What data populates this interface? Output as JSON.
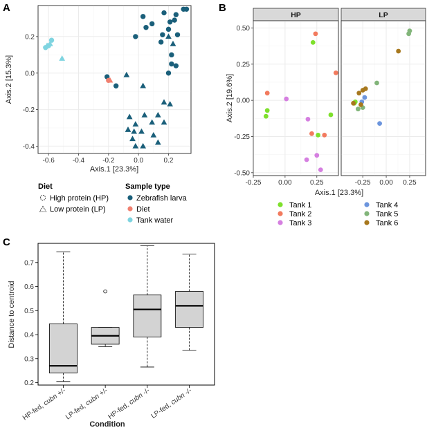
{
  "panels": {
    "a": "A",
    "b": "B",
    "c": "C"
  },
  "chart_data": [
    {
      "type": "scatter",
      "panel": "A",
      "xlabel": "Axis.1 [23.3%]",
      "ylabel": "Axis.2 [15.3%]",
      "xlim": [
        -0.67,
        0.35
      ],
      "ylim": [
        -0.44,
        0.37
      ],
      "xticks": [
        -0.6,
        -0.4,
        -0.2,
        0.0,
        0.2
      ],
      "xtick_labels": [
        "-0.6",
        "-0.4",
        "-0.2",
        "0.0",
        "0.2"
      ],
      "yticks": [
        -0.4,
        -0.2,
        0.0,
        0.2
      ],
      "ytick_labels": [
        "-0.4",
        "-0.2",
        "0.0",
        "0.2"
      ],
      "grid": true,
      "legend": {
        "diet_title": "Diet",
        "diet_items": [
          {
            "label": "High protein (HP)",
            "shape": "circle"
          },
          {
            "label": "Low protein (LP)",
            "shape": "triangle"
          }
        ],
        "sample_title": "Sample type",
        "sample_items": [
          {
            "label": "Zebrafish larva",
            "color": "#1a5f7a"
          },
          {
            "label": "Diet",
            "color": "#f08070"
          },
          {
            "label": "Tank water",
            "color": "#7fd4e0"
          }
        ],
        "placement": "bottom"
      },
      "series": [
        {
          "sample": "Zebrafish larva",
          "color": "#1a5f7a",
          "points": [
            {
              "x": 0.03,
              "y": 0.31,
              "shape": "circle"
            },
            {
              "x": 0.09,
              "y": 0.27,
              "shape": "circle"
            },
            {
              "x": 0.17,
              "y": 0.33,
              "shape": "circle"
            },
            {
              "x": 0.25,
              "y": 0.32,
              "shape": "circle"
            },
            {
              "x": 0.3,
              "y": 0.35,
              "shape": "circle"
            },
            {
              "x": 0.32,
              "y": 0.35,
              "shape": "circle"
            },
            {
              "x": 0.05,
              "y": 0.25,
              "shape": "circle"
            },
            {
              "x": 0.21,
              "y": 0.28,
              "shape": "circle"
            },
            {
              "x": 0.24,
              "y": 0.29,
              "shape": "circle"
            },
            {
              "x": 0.2,
              "y": 0.24,
              "shape": "circle"
            },
            {
              "x": 0.26,
              "y": 0.21,
              "shape": "circle"
            },
            {
              "x": -0.02,
              "y": 0.2,
              "shape": "circle"
            },
            {
              "x": 0.16,
              "y": 0.21,
              "shape": "circle"
            },
            {
              "x": 0.15,
              "y": 0.17,
              "shape": "circle"
            },
            {
              "x": 0.22,
              "y": 0.1,
              "shape": "circle"
            },
            {
              "x": 0.22,
              "y": 0.05,
              "shape": "circle"
            },
            {
              "x": 0.25,
              "y": 0.04,
              "shape": "circle"
            },
            {
              "x": 0.2,
              "y": 0.0,
              "shape": "circle"
            },
            {
              "x": -0.21,
              "y": -0.02,
              "shape": "circle"
            },
            {
              "x": -0.15,
              "y": -0.07,
              "shape": "circle"
            },
            {
              "x": 0.2,
              "y": 0.2,
              "shape": "triangle"
            },
            {
              "x": 0.23,
              "y": 0.16,
              "shape": "triangle"
            },
            {
              "x": -0.08,
              "y": -0.01,
              "shape": "triangle"
            },
            {
              "x": 0.03,
              "y": -0.07,
              "shape": "triangle"
            },
            {
              "x": 0.17,
              "y": -0.16,
              "shape": "triangle"
            },
            {
              "x": 0.21,
              "y": -0.17,
              "shape": "triangle"
            },
            {
              "x": -0.06,
              "y": -0.24,
              "shape": "triangle"
            },
            {
              "x": 0.04,
              "y": -0.23,
              "shape": "triangle"
            },
            {
              "x": 0.13,
              "y": -0.23,
              "shape": "triangle"
            },
            {
              "x": -0.02,
              "y": -0.28,
              "shape": "triangle"
            },
            {
              "x": -0.07,
              "y": -0.31,
              "shape": "triangle"
            },
            {
              "x": 0.09,
              "y": -0.27,
              "shape": "triangle"
            },
            {
              "x": 0.17,
              "y": -0.27,
              "shape": "triangle"
            },
            {
              "x": -0.03,
              "y": -0.32,
              "shape": "triangle"
            },
            {
              "x": 0.02,
              "y": -0.32,
              "shape": "triangle"
            },
            {
              "x": -0.04,
              "y": -0.36,
              "shape": "triangle"
            },
            {
              "x": 0.1,
              "y": -0.34,
              "shape": "triangle"
            },
            {
              "x": -0.02,
              "y": -0.4,
              "shape": "triangle"
            },
            {
              "x": 0.03,
              "y": -0.4,
              "shape": "triangle"
            },
            {
              "x": 0.13,
              "y": -0.38,
              "shape": "triangle"
            }
          ]
        },
        {
          "sample": "Diet",
          "color": "#f08070",
          "points": [
            {
              "x": -0.2,
              "y": -0.04,
              "shape": "circle"
            },
            {
              "x": -0.19,
              "y": -0.04,
              "shape": "triangle"
            }
          ]
        },
        {
          "sample": "Tank water",
          "color": "#7fd4e0",
          "points": [
            {
              "x": -0.6,
              "y": 0.15,
              "shape": "circle"
            },
            {
              "x": -0.62,
              "y": 0.14,
              "shape": "circle"
            },
            {
              "x": -0.58,
              "y": 0.18,
              "shape": "circle"
            },
            {
              "x": -0.61,
              "y": 0.15,
              "shape": "triangle"
            },
            {
              "x": -0.59,
              "y": 0.16,
              "shape": "triangle"
            },
            {
              "x": -0.51,
              "y": 0.08,
              "shape": "triangle"
            }
          ]
        }
      ]
    },
    {
      "type": "scatter",
      "panel": "B",
      "xlabel": "Axis.1 [23.3%]",
      "ylabel": "Axis.2 [19.6%]",
      "ylim": [
        -0.52,
        0.55
      ],
      "yticks": [
        -0.5,
        -0.25,
        0.0,
        0.25,
        0.5
      ],
      "ytick_labels": [
        "-0.50",
        "-0.25",
        "0.00",
        "0.25",
        "0.50"
      ],
      "grid": true,
      "facets": [
        {
          "name": "HP",
          "xlim": [
            -0.25,
            0.42
          ],
          "xticks": [
            -0.25,
            0.0,
            0.25
          ],
          "xtick_labels": [
            "-0.25",
            "0.00",
            "0.25"
          ],
          "points": [
            {
              "x": 0.22,
              "y": 0.4,
              "tank": "Tank 1"
            },
            {
              "x": 0.36,
              "y": -0.1,
              "tank": "Tank 1"
            },
            {
              "x": -0.14,
              "y": -0.07,
              "tank": "Tank 1"
            },
            {
              "x": -0.15,
              "y": -0.11,
              "tank": "Tank 1"
            },
            {
              "x": 0.26,
              "y": -0.24,
              "tank": "Tank 1"
            },
            {
              "x": 0.24,
              "y": 0.46,
              "tank": "Tank 2"
            },
            {
              "x": 0.4,
              "y": 0.19,
              "tank": "Tank 2"
            },
            {
              "x": -0.14,
              "y": 0.05,
              "tank": "Tank 2"
            },
            {
              "x": 0.21,
              "y": -0.23,
              "tank": "Tank 2"
            },
            {
              "x": 0.31,
              "y": -0.24,
              "tank": "Tank 2"
            },
            {
              "x": 0.01,
              "y": 0.01,
              "tank": "Tank 3"
            },
            {
              "x": 0.18,
              "y": -0.13,
              "tank": "Tank 3"
            },
            {
              "x": 0.25,
              "y": -0.38,
              "tank": "Tank 3"
            },
            {
              "x": 0.17,
              "y": -0.41,
              "tank": "Tank 3"
            },
            {
              "x": 0.28,
              "y": -0.48,
              "tank": "Tank 3"
            }
          ]
        },
        {
          "name": "LP",
          "xlim": [
            -0.48,
            0.42
          ],
          "xticks": [
            -0.25,
            0.0,
            0.25
          ],
          "xtick_labels": [
            "-0.25",
            "0.00",
            "0.25"
          ],
          "points": [
            {
              "x": -0.34,
              "y": -0.02,
              "tank": "Tank 1"
            },
            {
              "x": -0.33,
              "y": -0.01,
              "tank": "Tank 1"
            },
            {
              "x": -0.23,
              "y": 0.02,
              "tank": "Tank 4"
            },
            {
              "x": -0.26,
              "y": -0.01,
              "tank": "Tank 4"
            },
            {
              "x": -0.07,
              "y": -0.16,
              "tank": "Tank 4"
            },
            {
              "x": 0.25,
              "y": 0.48,
              "tank": "Tank 5"
            },
            {
              "x": 0.24,
              "y": 0.46,
              "tank": "Tank 5"
            },
            {
              "x": -0.1,
              "y": 0.12,
              "tank": "Tank 5"
            },
            {
              "x": -0.3,
              "y": -0.06,
              "tank": "Tank 5"
            },
            {
              "x": -0.25,
              "y": -0.05,
              "tank": "Tank 5"
            },
            {
              "x": 0.13,
              "y": 0.34,
              "tank": "Tank 6"
            },
            {
              "x": -0.22,
              "y": 0.08,
              "tank": "Tank 6"
            },
            {
              "x": -0.25,
              "y": 0.07,
              "tank": "Tank 6"
            },
            {
              "x": -0.29,
              "y": 0.05,
              "tank": "Tank 6"
            },
            {
              "x": -0.35,
              "y": -0.02,
              "tank": "Tank 6"
            },
            {
              "x": -0.27,
              "y": -0.03,
              "tank": "Tank 6"
            }
          ]
        }
      ],
      "legend": {
        "placement": "bottom",
        "items": [
          {
            "label": "Tank 1",
            "color": "#7ee02c"
          },
          {
            "label": "Tank 2",
            "color": "#f27a5e"
          },
          {
            "label": "Tank 3",
            "color": "#d57fe0"
          },
          {
            "label": "Tank 4",
            "color": "#6c95dd"
          },
          {
            "label": "Tank 5",
            "color": "#82b57a"
          },
          {
            "label": "Tank 6",
            "color": "#a7781e"
          }
        ]
      }
    },
    {
      "type": "box",
      "panel": "C",
      "xlabel": "Condition",
      "ylabel": "Distance to centroid",
      "ylim": [
        0.19,
        0.78
      ],
      "yticks": [
        0.2,
        0.3,
        0.4,
        0.5,
        0.6,
        0.7
      ],
      "ytick_labels": [
        "0.2",
        "0.3",
        "0.4",
        "0.5",
        "0.6",
        "0.7"
      ],
      "box_color": "#d3d3d3",
      "boxes": [
        {
          "label_prefix": "HP-fed, ",
          "label_gene": "cubn",
          "label_suffix": " +/-",
          "whisker_low": 0.205,
          "q1": 0.24,
          "median": 0.27,
          "q3": 0.445,
          "whisker_high": 0.745,
          "outliers": []
        },
        {
          "label_prefix": "LP-fed, ",
          "label_gene": "cubn",
          "label_suffix": " +/-",
          "whisker_low": 0.35,
          "q1": 0.36,
          "median": 0.395,
          "q3": 0.43,
          "whisker_high": 0.43,
          "outliers": [
            0.58
          ]
        },
        {
          "label_prefix": "HP-fed, ",
          "label_gene": "cubn",
          "label_suffix": " -/-",
          "whisker_low": 0.265,
          "q1": 0.39,
          "median": 0.505,
          "q3": 0.565,
          "whisker_high": 0.77,
          "outliers": []
        },
        {
          "label_prefix": "LP-fed, ",
          "label_gene": "cubn",
          "label_suffix": " -/-",
          "whisker_low": 0.335,
          "q1": 0.43,
          "median": 0.52,
          "q3": 0.58,
          "whisker_high": 0.735,
          "outliers": []
        }
      ]
    }
  ]
}
